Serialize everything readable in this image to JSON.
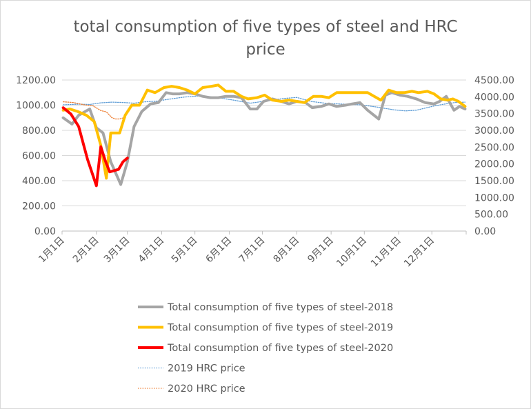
{
  "chart_data": {
    "type": "line",
    "title": [
      "total consumption of five types of steel and HRC",
      "price"
    ],
    "x_tick_labels": [
      "1月1日",
      "2月1日",
      "3月1日",
      "4月1日",
      "5月1日",
      "6月1日",
      "7月1日",
      "8月1日",
      "9月1日",
      "10月1日",
      "11月1日",
      "12月1日"
    ],
    "x_tick_days": [
      0,
      31,
      59,
      90,
      120,
      151,
      181,
      212,
      243,
      273,
      304,
      334
    ],
    "x_range_days": [
      0,
      365
    ],
    "y_left": {
      "range": [
        0,
        1200
      ],
      "ticks": [
        "0.00",
        "200.00",
        "400.00",
        "600.00",
        "800.00",
        "1000.00",
        "1200.00"
      ]
    },
    "y_right": {
      "range": [
        0,
        4500
      ],
      "ticks": [
        "0.00",
        "500.00",
        "1000.00",
        "1500.00",
        "2000.00",
        "2500.00",
        "3000.00",
        "3500.00",
        "4000.00",
        "4500.00"
      ]
    },
    "grid": "horizontal",
    "legend_position": "bottom",
    "series": [
      {
        "name": "Total consumption of five types of steel-2018",
        "axis": "left",
        "color": "#A5A5A5",
        "style": "solid",
        "points": [
          [
            1,
            900
          ],
          [
            9,
            850
          ],
          [
            15,
            920
          ],
          [
            25,
            970
          ],
          [
            31,
            820
          ],
          [
            37,
            780
          ],
          [
            44,
            550
          ],
          [
            53,
            370
          ],
          [
            59,
            550
          ],
          [
            65,
            830
          ],
          [
            72,
            950
          ],
          [
            80,
            1010
          ],
          [
            87,
            1020
          ],
          [
            94,
            1100
          ],
          [
            100,
            1090
          ],
          [
            106,
            1090
          ],
          [
            113,
            1100
          ],
          [
            120,
            1090
          ],
          [
            127,
            1070
          ],
          [
            134,
            1060
          ],
          [
            141,
            1060
          ],
          [
            148,
            1070
          ],
          [
            155,
            1070
          ],
          [
            162,
            1060
          ],
          [
            170,
            970
          ],
          [
            176,
            970
          ],
          [
            182,
            1030
          ],
          [
            190,
            1050
          ],
          [
            198,
            1030
          ],
          [
            205,
            1010
          ],
          [
            212,
            1030
          ],
          [
            220,
            1020
          ],
          [
            226,
            980
          ],
          [
            234,
            990
          ],
          [
            241,
            1010
          ],
          [
            248,
            990
          ],
          [
            256,
            1000
          ],
          [
            262,
            1010
          ],
          [
            269,
            1020
          ],
          [
            276,
            960
          ],
          [
            286,
            890
          ],
          [
            292,
            1080
          ],
          [
            298,
            1100
          ],
          [
            305,
            1080
          ],
          [
            312,
            1070
          ],
          [
            320,
            1050
          ],
          [
            328,
            1020
          ],
          [
            336,
            1010
          ],
          [
            341,
            1030
          ],
          [
            347,
            1070
          ],
          [
            354,
            960
          ],
          [
            359,
            990
          ],
          [
            364,
            970
          ]
        ]
      },
      {
        "name": "Total consumption of five types of steel-2019",
        "axis": "left",
        "color": "#FFC000",
        "style": "solid",
        "points": [
          [
            1,
            960
          ],
          [
            7,
            970
          ],
          [
            14,
            950
          ],
          [
            22,
            920
          ],
          [
            29,
            870
          ],
          [
            35,
            680
          ],
          [
            40,
            420
          ],
          [
            44,
            780
          ],
          [
            48,
            780
          ],
          [
            52,
            780
          ],
          [
            57,
            920
          ],
          [
            63,
            1000
          ],
          [
            70,
            1000
          ],
          [
            77,
            1120
          ],
          [
            84,
            1100
          ],
          [
            92,
            1140
          ],
          [
            99,
            1150
          ],
          [
            106,
            1140
          ],
          [
            113,
            1120
          ],
          [
            120,
            1090
          ],
          [
            127,
            1140
          ],
          [
            135,
            1150
          ],
          [
            141,
            1160
          ],
          [
            148,
            1110
          ],
          [
            155,
            1110
          ],
          [
            162,
            1070
          ],
          [
            168,
            1050
          ],
          [
            176,
            1060
          ],
          [
            183,
            1080
          ],
          [
            190,
            1040
          ],
          [
            198,
            1030
          ],
          [
            205,
            1040
          ],
          [
            212,
            1030
          ],
          [
            219,
            1020
          ],
          [
            227,
            1070
          ],
          [
            234,
            1070
          ],
          [
            241,
            1060
          ],
          [
            248,
            1100
          ],
          [
            255,
            1100
          ],
          [
            262,
            1100
          ],
          [
            269,
            1100
          ],
          [
            276,
            1100
          ],
          [
            282,
            1070
          ],
          [
            288,
            1040
          ],
          [
            295,
            1120
          ],
          [
            302,
            1100
          ],
          [
            309,
            1100
          ],
          [
            316,
            1110
          ],
          [
            322,
            1100
          ],
          [
            330,
            1110
          ],
          [
            336,
            1090
          ],
          [
            342,
            1050
          ],
          [
            348,
            1040
          ],
          [
            353,
            1050
          ],
          [
            358,
            1030
          ],
          [
            364,
            990
          ]
        ]
      },
      {
        "name": "Total consumption of five types of steel-2020",
        "axis": "left",
        "color": "#FF0000",
        "style": "solid",
        "points": [
          [
            1,
            980
          ],
          [
            8,
            930
          ],
          [
            15,
            830
          ],
          [
            23,
            570
          ],
          [
            31,
            360
          ],
          [
            35,
            670
          ],
          [
            39,
            560
          ],
          [
            43,
            470
          ],
          [
            47,
            480
          ],
          [
            51,
            490
          ],
          [
            55,
            550
          ],
          [
            59,
            580
          ]
        ]
      },
      {
        "name": "2019 HRC price",
        "axis": "right",
        "color": "#5B9BD5",
        "style": "dotted",
        "points": [
          [
            1,
            3760
          ],
          [
            15,
            3780
          ],
          [
            25,
            3770
          ],
          [
            35,
            3820
          ],
          [
            45,
            3840
          ],
          [
            55,
            3830
          ],
          [
            65,
            3810
          ],
          [
            75,
            3850
          ],
          [
            85,
            3870
          ],
          [
            95,
            3920
          ],
          [
            110,
            3990
          ],
          [
            125,
            4030
          ],
          [
            140,
            3980
          ],
          [
            155,
            3900
          ],
          [
            170,
            3810
          ],
          [
            185,
            3880
          ],
          [
            200,
            3950
          ],
          [
            212,
            3980
          ],
          [
            225,
            3860
          ],
          [
            240,
            3800
          ],
          [
            255,
            3780
          ],
          [
            270,
            3760
          ],
          [
            285,
            3690
          ],
          [
            300,
            3610
          ],
          [
            310,
            3580
          ],
          [
            320,
            3600
          ],
          [
            335,
            3720
          ],
          [
            345,
            3780
          ],
          [
            355,
            3830
          ],
          [
            364,
            3840
          ]
        ]
      },
      {
        "name": "2020 HRC price",
        "axis": "right",
        "color": "#ED7D31",
        "style": "dotted",
        "points": [
          [
            1,
            3850
          ],
          [
            10,
            3830
          ],
          [
            20,
            3760
          ],
          [
            28,
            3730
          ],
          [
            35,
            3590
          ],
          [
            40,
            3550
          ],
          [
            45,
            3380
          ],
          [
            48,
            3340
          ],
          [
            52,
            3340
          ],
          [
            55,
            3370
          ],
          [
            58,
            3380
          ]
        ]
      }
    ]
  }
}
